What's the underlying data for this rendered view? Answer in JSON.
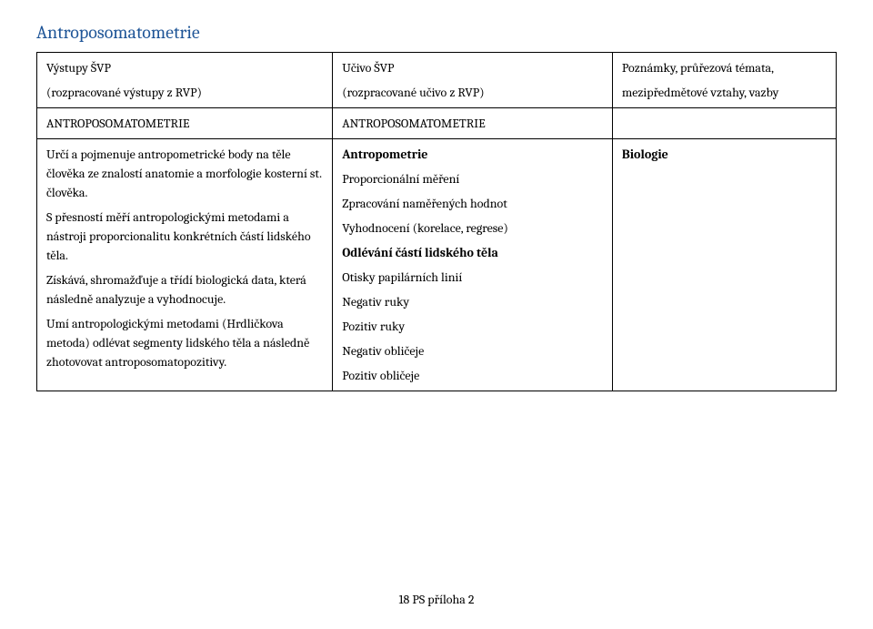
{
  "title": "Antroposomatometrie",
  "table": {
    "row1": {
      "c1_line1": "Výstupy ŠVP",
      "c1_line2": "(rozpracované výstupy z RVP)",
      "c2_line1": "Učivo ŠVP",
      "c2_line2": "(rozpracované učivo z RVP)",
      "c3_line1": "Poznámky, průřezová témata,",
      "c3_line2": "mezipředmětové vztahy, vazby"
    },
    "row2": {
      "c1": "ANTROPOSOMATOMETRIE",
      "c2": "ANTROPOSOMATOMETRIE",
      "c3": ""
    },
    "row3": {
      "c1_p1": "Určí a pojmenuje antropometrické body na těle člověka ze znalostí anatomie a morfologie kosterní st. člověka.",
      "c1_p2": "S přesností měří antropologickými metodami a nástroji proporcionalitu konkrétních částí lidského těla.",
      "c1_p3": "Získává, shromažďuje a třídí biologická data, která následně analyzuje a vyhodnocuje.",
      "c1_p4": "Umí antropologickými metodami (Hrdličkova metoda) odlévat segmenty lidského těla a následně zhotovovat antroposomatopozitivy.",
      "c2_p1": "Antropometrie",
      "c2_p2": "Proporcionální měření",
      "c2_p3": "Zpracování naměřených hodnot",
      "c2_p4": "Vyhodnocení (korelace, regrese)",
      "c2_p5": "Odlévání částí lidského těla",
      "c2_p6": "Otisky papilárních linií",
      "c2_p7": "Negativ ruky",
      "c2_p8": "Pozitiv ruky",
      "c2_p9": "Negativ obličeje",
      "c2_p10": "Pozitiv obličeje",
      "c3_p1": "Biologie"
    }
  },
  "footer": "18 PS příloha 2"
}
